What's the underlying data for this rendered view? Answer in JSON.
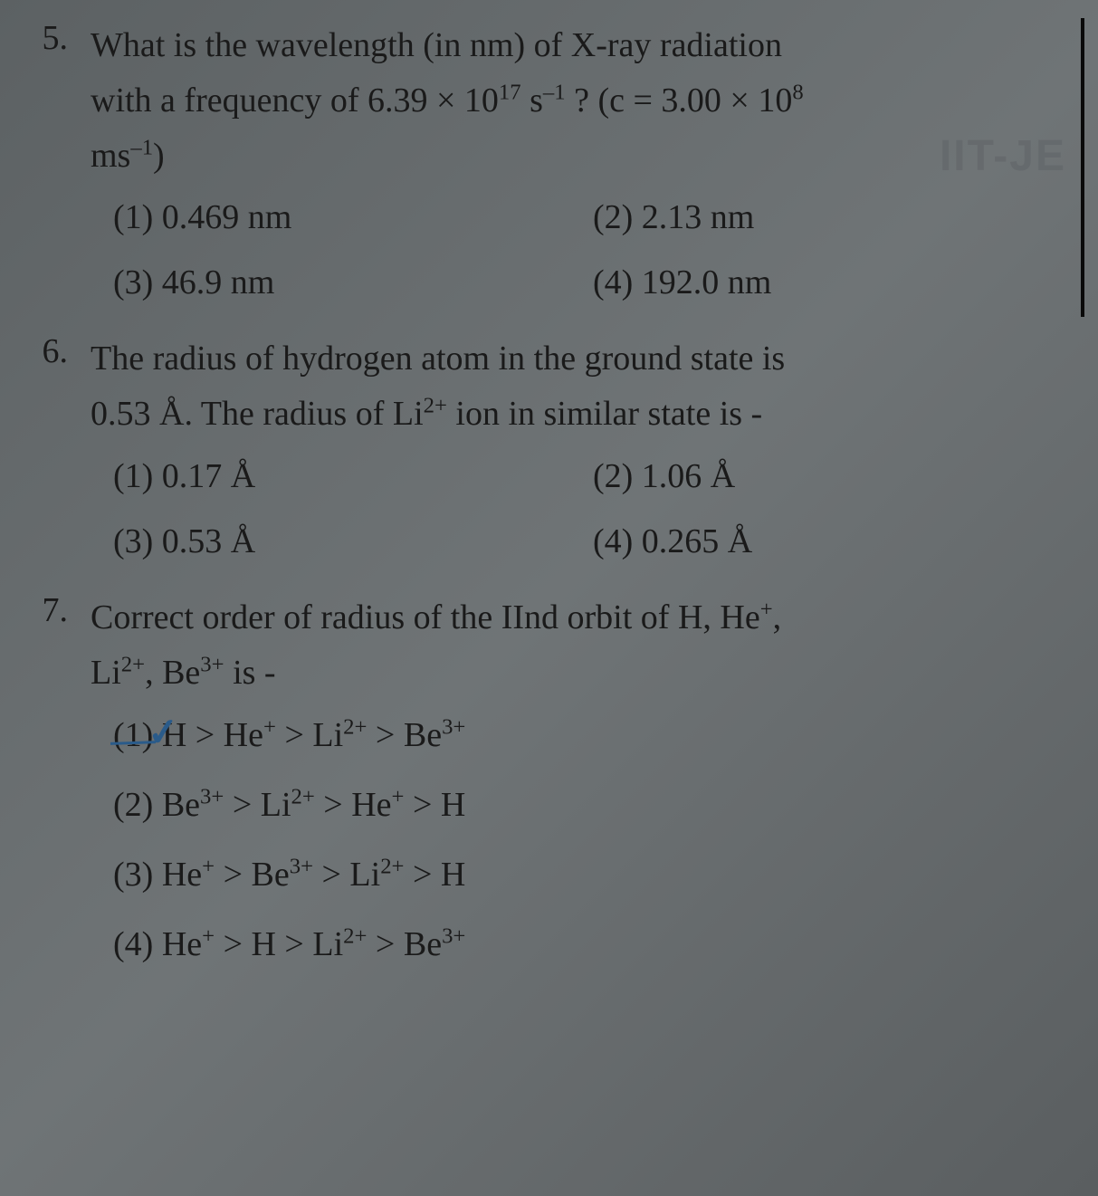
{
  "watermark": "IIT-JE",
  "questions": [
    {
      "number": "5.",
      "text_parts": {
        "line1": "What is the wavelength (in nm) of X-ray radiation",
        "line2_pre": "with a frequency of 6.39 × 10",
        "line2_exp1": "17",
        "line2_mid": " s",
        "line2_exp2": "–1",
        "line2_post": " ? (c = 3.00 × 10",
        "line2_exp3": "8",
        "line3_pre": "ms",
        "line3_exp": "–1",
        "line3_post": ")"
      },
      "options": [
        {
          "label": "(1) 0.469 nm",
          "right": "(2) 2.13 nm"
        },
        {
          "label": "(3) 46.9 nm",
          "right": "(4) 192.0 nm"
        }
      ]
    },
    {
      "number": "6.",
      "text_parts": {
        "line1": "The radius of hydrogen atom in the ground state is",
        "line2_pre": "0.53 Å. The radius of Li",
        "line2_exp": "2+",
        "line2_post": " ion  in similar state is -"
      },
      "options": [
        {
          "label": "(1) 0.17 Å",
          "right": "(2) 1.06 Å"
        },
        {
          "label": "(3) 0.53 Å",
          "right": "(4) 0.265 Å"
        }
      ]
    },
    {
      "number": "7.",
      "text_parts": {
        "line1_pre": "Correct order of radius of the IInd orbit of H, He",
        "line1_exp": "+",
        "line1_post": ",",
        "line2_pre": "Li",
        "line2_exp1": "2+",
        "line2_mid": ", Be",
        "line2_exp2": "3+",
        "line2_post": " is -"
      },
      "options_full": [
        {
          "num": "(1)",
          "parts": [
            "H > He",
            "+",
            " > Li",
            "2+",
            " > Be",
            "3+"
          ],
          "checked": true
        },
        {
          "num": "(2)",
          "parts": [
            "Be",
            "3+",
            " > Li",
            "2+",
            " > He",
            "+",
            " > H"
          ]
        },
        {
          "num": "(3)",
          "parts": [
            "He",
            "+",
            " > Be",
            "3+",
            " > Li",
            "2+",
            " > H"
          ]
        },
        {
          "num": "(4)",
          "parts": [
            "He",
            "+",
            " > H > Li",
            "2+",
            " > Be",
            "3+"
          ]
        }
      ]
    }
  ]
}
